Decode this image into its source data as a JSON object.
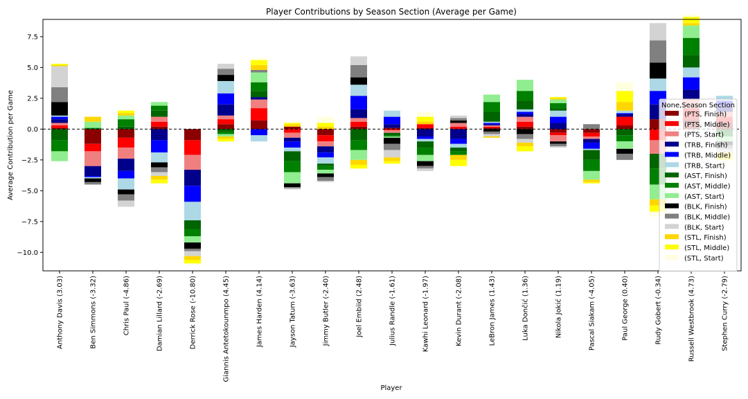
{
  "chart_data": {
    "type": "bar",
    "stacked": true,
    "title": "Player Contributions by Season Section (Average per Game)",
    "xlabel": "Player",
    "ylabel": "Average Contribution per Game",
    "ylim": [
      -11.5,
      8.9
    ],
    "yticks": [
      -10.0,
      -7.5,
      -5.0,
      -2.5,
      0.0,
      2.5,
      5.0,
      7.5
    ],
    "ytick_labels": [
      "−10.0",
      "−7.5",
      "−5.0",
      "−2.5",
      "0.0",
      "2.5",
      "5.0",
      "7.5"
    ],
    "zero_line": true,
    "grid": false,
    "legend": {
      "title": "None,Season Section",
      "placement": "right"
    },
    "categories": [
      "Anthony Davis (3.03)",
      "Ben Simmons (-3.32)",
      "Chris Paul (-4.86)",
      "Damian Lillard (-2.69)",
      "Derrick Rose (-10.80)",
      "Giannis Antetokounmpo (4.45)",
      "James Harden (4.14)",
      "Jayson Tatum (-3.63)",
      "Jimmy Butler (-2.40)",
      "Joel Embiid (2.48)",
      "Julius Randle (-1.61)",
      "Kawhi Leonard (-1.97)",
      "Kevin Durant (-2.08)",
      "LeBron James (1.43)",
      "Luka Dončić (1.36)",
      "Nikola Jokić (1.19)",
      "Pascal Siakam (-4.05)",
      "Paul George (0.40)",
      "Rudy Gobert (-0.34)",
      "Russell Westbrook (4.73)",
      "Stephen Curry (-2.79)"
    ],
    "series": [
      {
        "name": "(PTS, Finish)",
        "color": "#8b0000",
        "values": [
          0.1,
          -1.2,
          -0.7,
          0.2,
          -0.9,
          0.4,
          0.7,
          0.2,
          -0.5,
          0.2,
          0.1,
          0.1,
          0.0,
          0.1,
          0.2,
          -0.3,
          -0.3,
          0.3,
          0.8,
          0.8,
          0.5
        ]
      },
      {
        "name": "(PTS, Middle)",
        "color": "#ff0000",
        "values": [
          0.2,
          -0.6,
          -0.8,
          0.4,
          -1.2,
          0.4,
          1.0,
          -0.3,
          -0.5,
          0.4,
          -0.1,
          0.3,
          0.2,
          0.1,
          0.4,
          -0.2,
          -0.3,
          0.7,
          -0.9,
          0.9,
          0.5
        ]
      },
      {
        "name": "(PTS, Start)",
        "color": "#f08080",
        "values": [
          0.2,
          -1.2,
          -0.9,
          0.4,
          -1.2,
          0.3,
          0.7,
          -0.4,
          -0.4,
          0.3,
          -0.2,
          0.0,
          0.3,
          0.1,
          0.4,
          -0.5,
          -0.2,
          0.0,
          -1.1,
          0.7,
          0.4
        ]
      },
      {
        "name": "(TRB, Finish)",
        "color": "#00008b",
        "values": [
          0.3,
          -0.8,
          -1.0,
          -0.9,
          -1.3,
          0.9,
          0.2,
          -0.3,
          -0.5,
          0.7,
          0.3,
          -0.6,
          -0.8,
          0.1,
          0.2,
          0.5,
          -0.3,
          0.2,
          1.2,
          0.8,
          0.5
        ]
      },
      {
        "name": "(TRB, Middle)",
        "color": "#0000ff",
        "values": [
          0.2,
          -0.1,
          -0.6,
          -1.0,
          -1.3,
          0.9,
          -0.5,
          -0.5,
          -0.4,
          1.1,
          0.6,
          -0.2,
          -0.4,
          0.1,
          0.2,
          0.5,
          -0.5,
          0.1,
          1.1,
          1.0,
          0.4
        ]
      },
      {
        "name": "(TRB, Start)",
        "color": "#add8e6",
        "values": [
          0.1,
          -0.1,
          -0.9,
          -0.8,
          -1.5,
          1.0,
          -0.5,
          -0.3,
          -0.5,
          0.9,
          0.5,
          -0.2,
          -0.3,
          0.1,
          0.2,
          0.5,
          -0.1,
          0.2,
          1.0,
          0.8,
          0.4
        ]
      },
      {
        "name": "(AST, Finish)",
        "color": "#006400",
        "values": [
          -0.9,
          0.0,
          0.2,
          0.5,
          -0.7,
          -0.2,
          0.5,
          -0.8,
          -0.2,
          -0.9,
          -0.2,
          -0.5,
          -0.3,
          0.8,
          0.7,
          0.2,
          -0.8,
          -0.5,
          -1.2,
          1.0,
          -0.3
        ]
      },
      {
        "name": "(AST, Middle)",
        "color": "#008000",
        "values": [
          -0.9,
          0.1,
          0.6,
          0.4,
          -0.6,
          -0.2,
          0.7,
          -0.9,
          -0.3,
          -0.8,
          -0.1,
          -0.6,
          -0.3,
          0.8,
          0.8,
          0.4,
          -0.9,
          -0.5,
          -1.3,
          1.4,
          -0.3
        ]
      },
      {
        "name": "(AST, Start)",
        "color": "#90ee90",
        "values": [
          -0.8,
          0.5,
          0.3,
          0.3,
          -0.5,
          -0.2,
          0.8,
          -0.9,
          -0.3,
          -0.8,
          -0.1,
          -0.5,
          0.0,
          0.6,
          0.9,
          0.3,
          -0.7,
          -0.6,
          -1.2,
          1.0,
          -0.4
        ]
      },
      {
        "name": "(BLK, Finish)",
        "color": "#000000",
        "values": [
          1.1,
          -0.3,
          -0.4,
          -0.4,
          -0.5,
          0.5,
          0.0,
          -0.3,
          -0.3,
          0.6,
          -0.5,
          -0.4,
          0.2,
          -0.2,
          -0.4,
          -0.2,
          0.0,
          -0.4,
          1.3,
          0.0,
          -0.3
        ]
      },
      {
        "name": "(BLK, Middle)",
        "color": "#808080",
        "values": [
          1.2,
          -0.2,
          -0.5,
          -0.4,
          -0.2,
          0.5,
          0.2,
          -0.1,
          -0.3,
          1.0,
          -0.5,
          -0.2,
          0.2,
          -0.2,
          -0.4,
          -0.2,
          0.4,
          -0.5,
          1.8,
          0.0,
          -0.3
        ]
      },
      {
        "name": "(BLK, Start)",
        "color": "#d3d3d3",
        "values": [
          1.7,
          0.0,
          -0.5,
          -0.3,
          -0.4,
          0.4,
          0.0,
          -0.1,
          -0.1,
          0.7,
          -0.6,
          -0.2,
          0.2,
          -0.2,
          -0.3,
          -0.1,
          0.0,
          0.0,
          1.4,
          0.0,
          -0.3
        ]
      },
      {
        "name": "(STL, Finish)",
        "color": "#ffd700",
        "values": [
          0.1,
          0.4,
          0.2,
          -0.3,
          -0.3,
          -0.2,
          0.4,
          0.2,
          0.2,
          -0.4,
          -0.3,
          0.2,
          -0.4,
          -0.1,
          -0.3,
          0.1,
          -0.2,
          0.7,
          -0.5,
          0.2,
          -0.3
        ]
      },
      {
        "name": "(STL, Middle)",
        "color": "#ffff00",
        "values": [
          0.1,
          0.0,
          0.2,
          -0.3,
          -0.3,
          -0.2,
          0.4,
          0.1,
          0.3,
          -0.3,
          -0.2,
          0.4,
          -0.5,
          0.0,
          -0.4,
          0.1,
          -0.1,
          0.9,
          -0.5,
          0.5,
          -0.3
        ]
      },
      {
        "name": "(STL, Start)",
        "color": "#ffffe0",
        "values": [
          0.0,
          0.0,
          0.1,
          -0.1,
          -0.1,
          0.0,
          0.2,
          0.1,
          0.5,
          0.0,
          -0.1,
          0.4,
          0.0,
          0.0,
          -0.1,
          0.0,
          0.0,
          0.7,
          -0.4,
          0.2,
          -0.4
        ]
      }
    ]
  }
}
